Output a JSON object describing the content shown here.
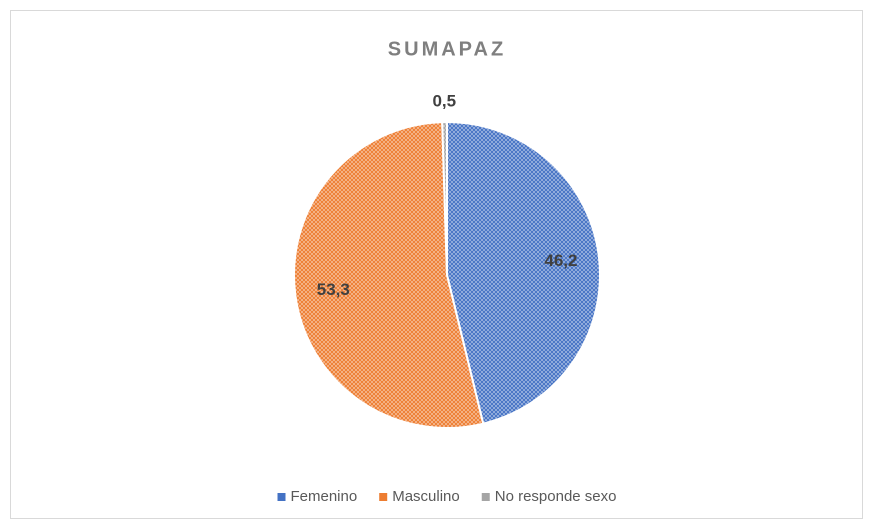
{
  "chart_data": {
    "type": "pie",
    "title": "SUMAPAZ",
    "categories": [
      "Femenino",
      "Masculino",
      "No responde sexo"
    ],
    "values": [
      46.2,
      53.3,
      0.5
    ],
    "value_labels": [
      "46,2",
      "53,3",
      "0,5"
    ],
    "colors": [
      "#4472c4",
      "#ed7d31",
      "#a5a5a5"
    ],
    "legend": "bottom"
  }
}
